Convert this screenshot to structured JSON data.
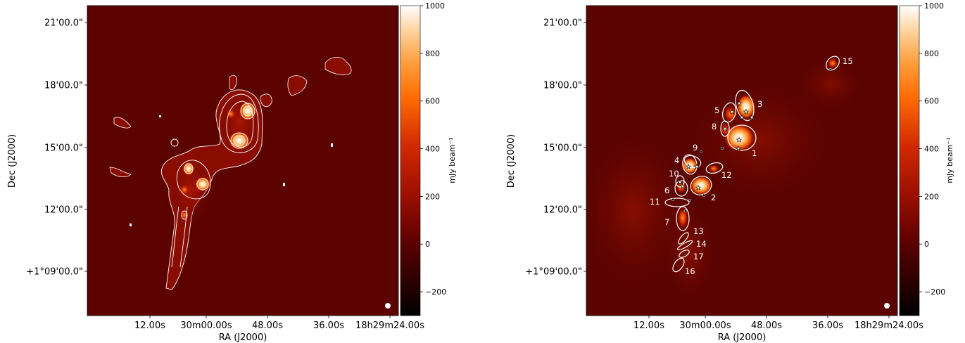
{
  "chart_data": [
    {
      "type": "heatmap",
      "title": "",
      "xlabel": "RA (J2000)",
      "ylabel": "Dec (J2000)",
      "x_ticks": [
        "12.00s",
        "30m00.00s",
        "48.00s",
        "36.00s",
        "18h29m24.00s"
      ],
      "y_ticks": [
        "21'00.0\"",
        "18'00.0\"",
        "15'00.0\"",
        "12'00.0\"",
        "+1°09'00.0\""
      ],
      "colorbar": {
        "label": "mJy beam⁻¹",
        "range": [
          -300,
          1000
        ],
        "ticks": [
          "−200",
          "0",
          "200",
          "400",
          "600",
          "800",
          "1000"
        ],
        "tick_values": [
          -200,
          0,
          200,
          400,
          600,
          800,
          1000
        ],
        "colormap": "gist_heat"
      },
      "contours": true,
      "contour_color": "#ffffff",
      "beam_marker": "white-circle-bottom-right"
    },
    {
      "type": "heatmap",
      "title": "",
      "xlabel": "RA (J2000)",
      "ylabel": "Dec (J2000)",
      "x_ticks": [
        "12.00s",
        "30m00.00s",
        "48.00s",
        "36.00s",
        "18h29m24.00s"
      ],
      "y_ticks": [
        "21'00.0\"",
        "18'00.0\"",
        "15'00.0\"",
        "12'00.0\"",
        "+1°09'00.0\""
      ],
      "colorbar": {
        "label": "mJy beam⁻¹",
        "range": [
          -300,
          1000
        ],
        "ticks": [
          "−200",
          "0",
          "200",
          "400",
          "600",
          "800",
          "1000"
        ],
        "tick_values": [
          -200,
          0,
          200,
          400,
          600,
          800,
          1000
        ],
        "colormap": "gist_heat"
      },
      "clump_labels": [
        "1",
        "2",
        "3",
        "4",
        "5",
        "6",
        "7",
        "8",
        "9",
        "10",
        "11",
        "12",
        "13",
        "14",
        "15",
        "16",
        "17"
      ],
      "ellipse_color": "#ffffff",
      "star_markers": true,
      "beam_marker": "white-circle-bottom-right"
    }
  ]
}
